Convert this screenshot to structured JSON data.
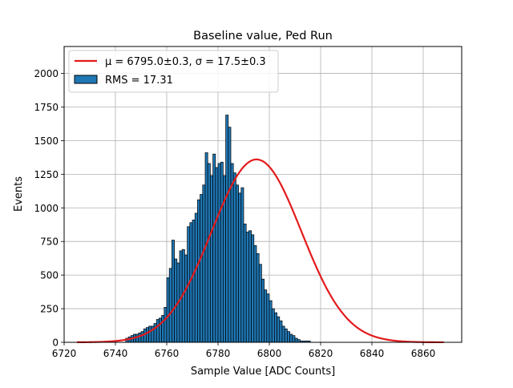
{
  "chart_data": {
    "type": "bar",
    "title": "Baseline value, Ped Run",
    "xlabel": "Sample Value [ADC Counts]",
    "ylabel": "Events",
    "xlim": [
      6720,
      6875
    ],
    "ylim": [
      0,
      2200
    ],
    "xticks": [
      6720,
      6740,
      6760,
      6780,
      6800,
      6820,
      6840,
      6860
    ],
    "yticks": [
      0,
      250,
      500,
      750,
      1000,
      1250,
      1500,
      1750,
      2000
    ],
    "grid": true,
    "legend_position": "top-left",
    "legend": [
      {
        "label": "μ = 6795.0±0.3, σ = 17.5±0.3",
        "kind": "line",
        "color": "#e31a1c"
      },
      {
        "label": "RMS = 17.31",
        "kind": "patch",
        "color": "#1f77b4"
      }
    ],
    "histogram": {
      "name": "RMS = 17.31",
      "color": "#1f77b4",
      "bin_start": 6744,
      "bin_width": 1,
      "counts": [
        30,
        40,
        50,
        60,
        60,
        70,
        80,
        100,
        110,
        120,
        120,
        140,
        170,
        180,
        200,
        260,
        480,
        550,
        760,
        620,
        590,
        680,
        690,
        650,
        860,
        890,
        910,
        960,
        1060,
        1100,
        1170,
        1410,
        1330,
        1240,
        1400,
        1300,
        1330,
        1340,
        1240,
        1690,
        1600,
        1330,
        1260,
        1170,
        1110,
        1150,
        880,
        820,
        830,
        800,
        720,
        660,
        580,
        470,
        390,
        360,
        310,
        250,
        220,
        190,
        160,
        120,
        100,
        80,
        60,
        50,
        30,
        20,
        10,
        10,
        10,
        10
      ]
    },
    "fit": {
      "name": "μ = 6795.0±0.3, σ = 17.5±0.3",
      "color": "#e31a1c",
      "mu": 6795.0,
      "sigma": 17.5,
      "amplitude": 1360,
      "x_range": [
        6725,
        6868
      ]
    }
  }
}
